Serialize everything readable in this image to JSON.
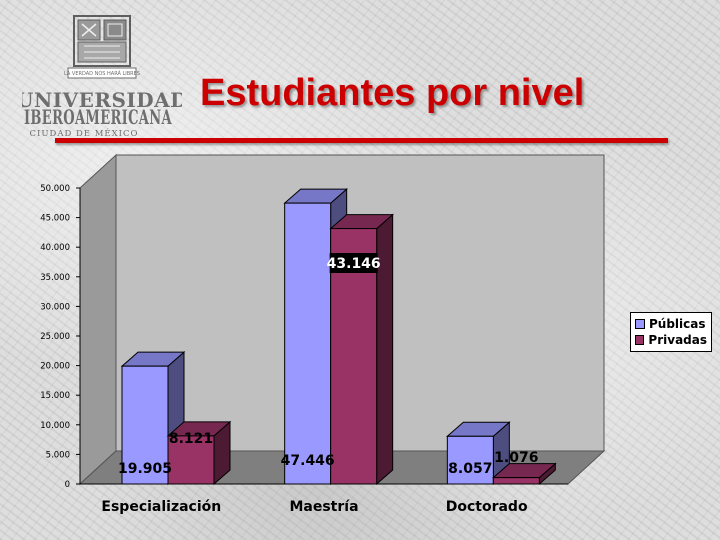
{
  "header": {
    "logo_line1": "UNIVERSIDAD",
    "logo_line2": "IBEROAMERICANA",
    "logo_line3": "CIUDAD DE MÉXICO",
    "logo_motto": "LA VERDAD NOS HARÁ LIBRES",
    "title": "Estudiantes por nivel"
  },
  "colors": {
    "title": "#cc0000",
    "publicas": "#9999ff",
    "privadas": "#993366"
  },
  "chart_data": {
    "type": "bar",
    "title": "Estudiantes por nivel",
    "categories": [
      "Especialización",
      "Maestría",
      "Doctorado"
    ],
    "series": [
      {
        "name": "Públicas",
        "values": [
          19905,
          47446,
          8057
        ],
        "labels": [
          "19.905",
          "47.446",
          "8.057"
        ]
      },
      {
        "name": "Privadas",
        "values": [
          8121,
          43146,
          1076
        ],
        "labels": [
          "8.121",
          "43.146",
          "1.076"
        ]
      }
    ],
    "ylim": [
      0,
      50000
    ],
    "yticks": [
      "0",
      "5.000",
      "10.000",
      "15.000",
      "20.000",
      "25.000",
      "30.000",
      "35.000",
      "40.000",
      "45.000",
      "50.000"
    ],
    "grid": false,
    "legend_position": "right",
    "three_d": true
  }
}
